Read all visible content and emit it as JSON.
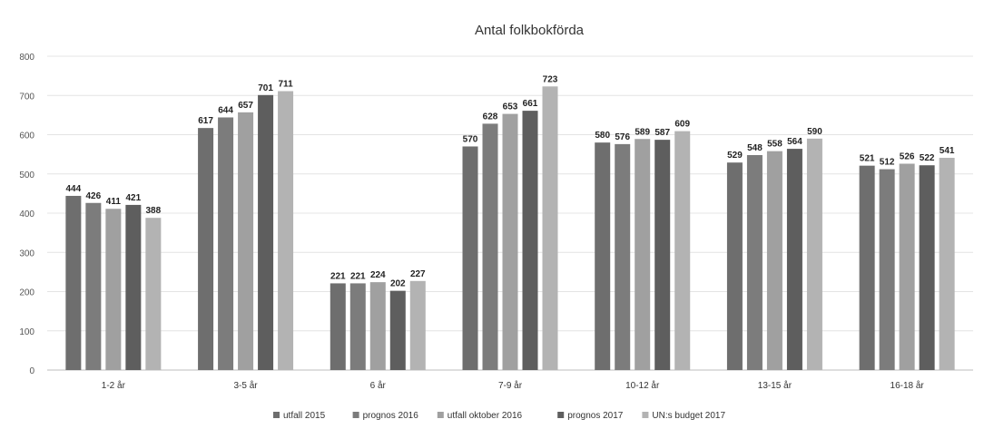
{
  "chart_data": {
    "type": "bar",
    "title": "Antal folkbokförda",
    "xlabel": "",
    "ylabel": "",
    "ylim": [
      0,
      800
    ],
    "yticks": [
      0,
      100,
      200,
      300,
      400,
      500,
      600,
      700,
      800
    ],
    "grid": true,
    "legend_position": "bottom",
    "categories": [
      "1-2 år",
      "3-5 år",
      "6 år",
      "7-9 år",
      "10-12 år",
      "13-15 år",
      "16-18 år"
    ],
    "series": [
      {
        "name": "utfall 2015",
        "color": "#6e6e6e",
        "values": [
          444,
          617,
          221,
          570,
          580,
          529,
          521
        ]
      },
      {
        "name": "prognos 2016",
        "color": "#7c7c7c",
        "values": [
          426,
          644,
          221,
          628,
          576,
          548,
          512
        ]
      },
      {
        "name": "utfall oktober 2016",
        "color": "#a0a0a0",
        "values": [
          411,
          657,
          224,
          653,
          589,
          558,
          526
        ]
      },
      {
        "name": "prognos 2017",
        "color": "#5e5e5e",
        "values": [
          421,
          701,
          202,
          661,
          587,
          564,
          522
        ]
      },
      {
        "name": "UN:s budget 2017",
        "color": "#b3b3b3",
        "values": [
          388,
          711,
          227,
          723,
          609,
          590,
          541
        ]
      }
    ]
  }
}
